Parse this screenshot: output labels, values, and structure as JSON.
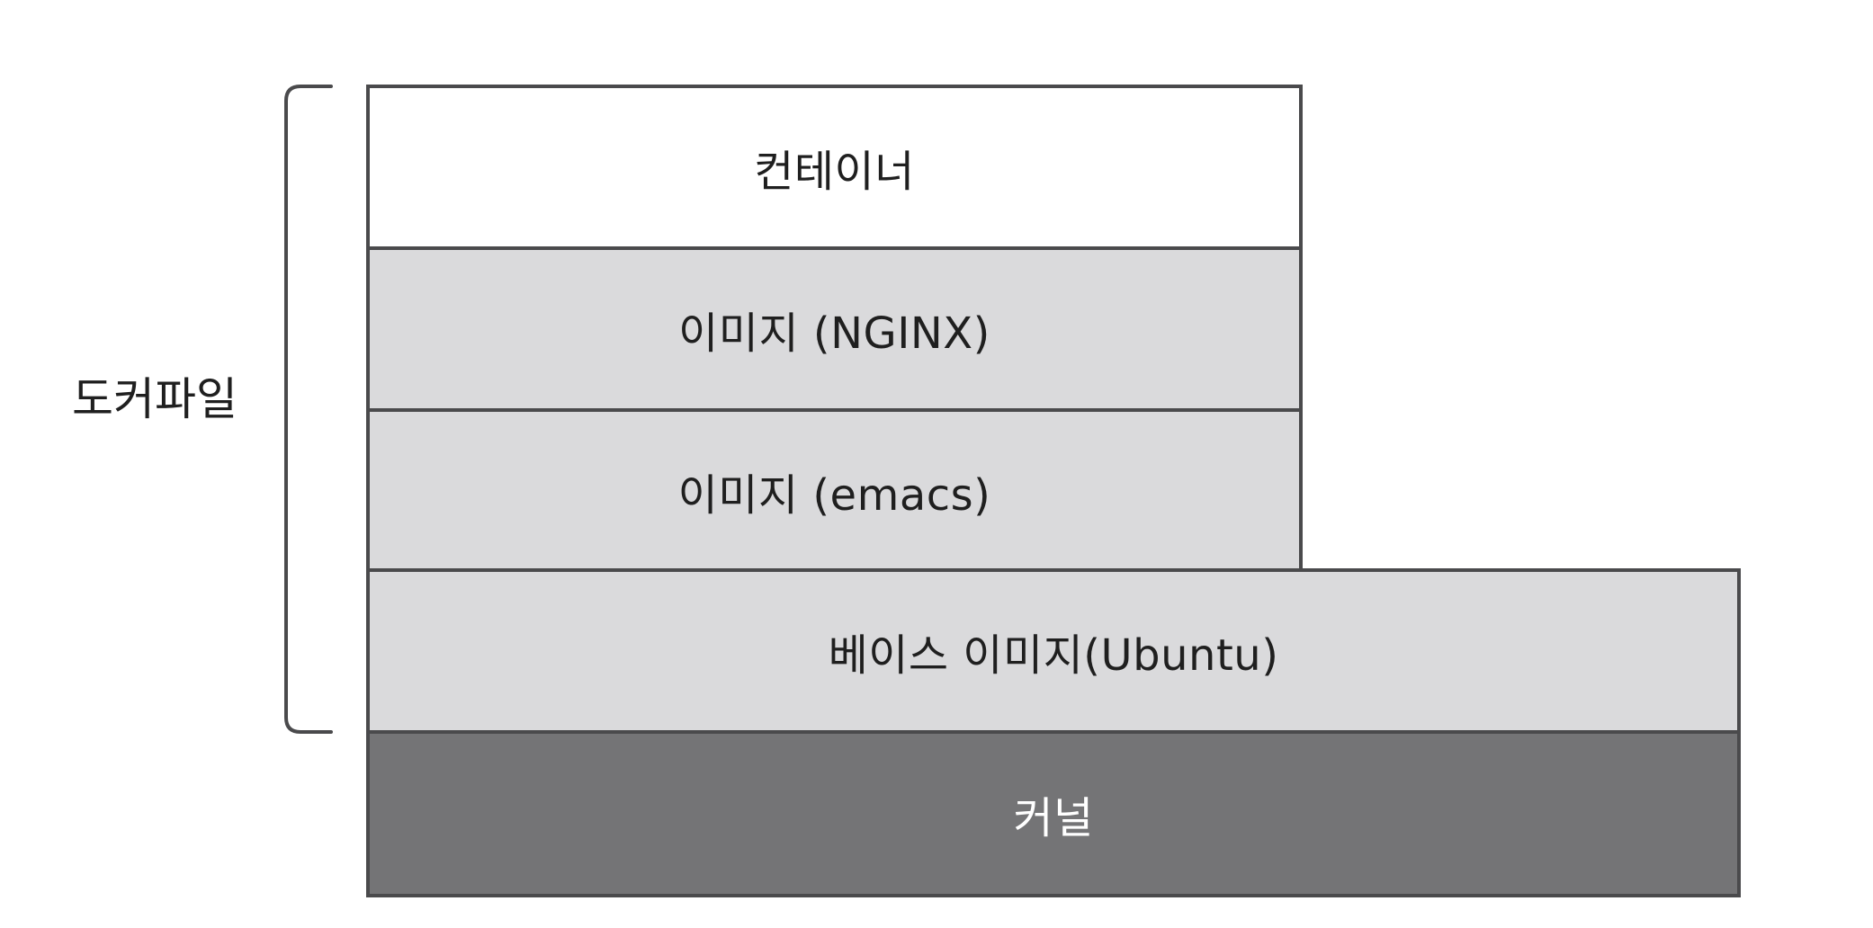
{
  "diagram": {
    "bracket_label": "도커파일",
    "layers": {
      "container": "컨테이너",
      "image_nginx": "이미지 (NGINX)",
      "image_emacs": "이미지 (emacs)",
      "base_image": "베이스 이미지(Ubuntu)",
      "kernel": "커널"
    }
  },
  "colors": {
    "border": "#4a4a4c",
    "light_layer": "#dadadc",
    "top_layer": "#ffffff",
    "kernel_layer": "#747476"
  }
}
